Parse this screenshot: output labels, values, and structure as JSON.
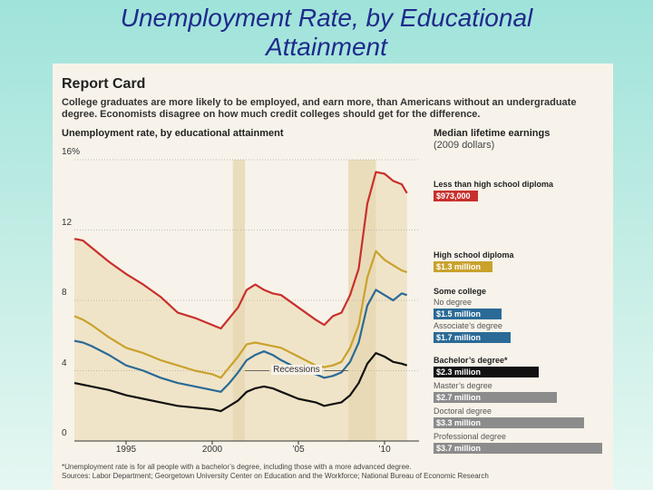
{
  "slide": {
    "title_line1": "Unemployment Rate, by Educational",
    "title_line2": "Attainment"
  },
  "card": {
    "title": "Report Card",
    "intro": "College graduates are more likely to be employed, and earn more, than Americans without an undergraduate degree. Economists disagree on how much credit colleges should get for the difference.",
    "footnote_line1": "*Unemployment rate is for all people with a bachelor’s degree, including those with a more advanced degree.",
    "footnote_line2": "Sources: Labor Department; Georgetown University Center on Education and the Workforce; National Bureau of Economic Research"
  },
  "colors": {
    "less_than_hs": "#c8302c",
    "high_school": "#c9a22c",
    "some_college": "#2a6a96",
    "bachelors": "#111111",
    "advanced": "#8c8c8c",
    "recession_band": "#e8d8b4",
    "fill": "#f0e4c8"
  },
  "chart_data": {
    "type": "line",
    "title": "Unemployment rate, by educational attainment",
    "ylabel": "",
    "ylim": [
      0,
      16
    ],
    "y_ticks": [
      "16%",
      "12",
      "8",
      "4",
      "0"
    ],
    "y_tick_values": [
      16,
      12,
      8,
      4,
      0
    ],
    "xlim": [
      1992.0,
      2012.0
    ],
    "x_ticks": [
      "1995",
      "2000",
      "’05",
      "’10"
    ],
    "x_tick_values": [
      1995,
      2000,
      2005,
      2010
    ],
    "recessions": [
      [
        2001.2,
        2001.9
      ],
      [
        2007.9,
        2009.5
      ]
    ],
    "recession_label": "Recessions",
    "series": [
      {
        "name": "Less than high school diploma",
        "x": [
          1992.0,
          1992.5,
          1993.0,
          1994.0,
          1995.0,
          1996.0,
          1997.0,
          1998.0,
          1999.0,
          2000.0,
          2000.5,
          2001.0,
          2001.5,
          2002.0,
          2002.5,
          2003.0,
          2003.5,
          2004.0,
          2005.0,
          2006.0,
          2006.5,
          2007.0,
          2007.5,
          2008.0,
          2008.5,
          2009.0,
          2009.5,
          2010.0,
          2010.5,
          2011.0,
          2011.3
        ],
        "values": [
          11.5,
          11.4,
          11.0,
          10.2,
          9.5,
          8.9,
          8.2,
          7.3,
          7.0,
          6.6,
          6.4,
          7.0,
          7.6,
          8.6,
          8.9,
          8.6,
          8.4,
          8.3,
          7.6,
          6.9,
          6.6,
          7.1,
          7.3,
          8.3,
          9.8,
          13.5,
          15.3,
          15.2,
          14.8,
          14.6,
          14.1
        ]
      },
      {
        "name": "High school diploma",
        "x": [
          1992.0,
          1992.5,
          1993.0,
          1994.0,
          1995.0,
          1996.0,
          1997.0,
          1998.0,
          1999.0,
          2000.0,
          2000.5,
          2001.0,
          2001.5,
          2002.0,
          2002.5,
          2003.0,
          2003.5,
          2004.0,
          2005.0,
          2006.0,
          2006.5,
          2007.0,
          2007.5,
          2008.0,
          2008.5,
          2009.0,
          2009.5,
          2010.0,
          2010.5,
          2011.0,
          2011.3
        ],
        "values": [
          7.1,
          6.9,
          6.6,
          5.9,
          5.3,
          5.0,
          4.6,
          4.3,
          4.0,
          3.8,
          3.6,
          4.2,
          4.8,
          5.5,
          5.6,
          5.5,
          5.4,
          5.3,
          4.8,
          4.3,
          4.2,
          4.3,
          4.5,
          5.3,
          6.6,
          9.3,
          10.8,
          10.3,
          10.0,
          9.7,
          9.6
        ]
      },
      {
        "name": "Some college",
        "x": [
          1992.0,
          1992.5,
          1993.0,
          1994.0,
          1995.0,
          1996.0,
          1997.0,
          1998.0,
          1999.0,
          2000.0,
          2000.5,
          2001.0,
          2001.5,
          2002.0,
          2002.5,
          2003.0,
          2003.5,
          2004.0,
          2005.0,
          2006.0,
          2006.5,
          2007.0,
          2007.5,
          2008.0,
          2008.5,
          2009.0,
          2009.5,
          2010.0,
          2010.5,
          2011.0,
          2011.3
        ],
        "values": [
          5.7,
          5.6,
          5.4,
          4.9,
          4.3,
          4.0,
          3.6,
          3.3,
          3.1,
          2.9,
          2.8,
          3.3,
          3.9,
          4.6,
          4.9,
          5.1,
          4.9,
          4.6,
          4.1,
          3.8,
          3.6,
          3.7,
          3.9,
          4.5,
          5.6,
          7.7,
          8.6,
          8.3,
          8.0,
          8.4,
          8.3
        ]
      },
      {
        "name": "Bachelor’s degree*",
        "x": [
          1992.0,
          1992.5,
          1993.0,
          1994.0,
          1995.0,
          1996.0,
          1997.0,
          1998.0,
          1999.0,
          2000.0,
          2000.5,
          2001.0,
          2001.5,
          2002.0,
          2002.5,
          2003.0,
          2003.5,
          2004.0,
          2005.0,
          2006.0,
          2006.5,
          2007.0,
          2007.5,
          2008.0,
          2008.5,
          2009.0,
          2009.5,
          2010.0,
          2010.5,
          2011.0,
          2011.3
        ],
        "values": [
          3.3,
          3.2,
          3.1,
          2.9,
          2.6,
          2.4,
          2.2,
          2.0,
          1.9,
          1.8,
          1.7,
          2.0,
          2.3,
          2.8,
          3.0,
          3.1,
          3.0,
          2.8,
          2.4,
          2.2,
          2.0,
          2.1,
          2.2,
          2.6,
          3.3,
          4.4,
          5.0,
          4.8,
          4.5,
          4.4,
          4.3
        ]
      }
    ]
  },
  "earnings": {
    "title": "Median lifetime earnings",
    "subtitle": "(2009 dollars)",
    "items": [
      {
        "label": "Less than high school diploma",
        "value": "$973,000",
        "amount": 973000,
        "bold": true,
        "color": "#c8302c"
      },
      {
        "label": "High school diploma",
        "value": "$1.3 million",
        "amount": 1300000,
        "bold": true,
        "color": "#c9a22c"
      },
      {
        "label": "Some college",
        "value": "",
        "amount": null,
        "bold": true,
        "color": ""
      },
      {
        "label": "No degree",
        "value": "$1.5 million",
        "amount": 1500000,
        "bold": false,
        "color": "#2a6a96"
      },
      {
        "label": "Associate’s degree",
        "value": "$1.7 million",
        "amount": 1700000,
        "bold": false,
        "color": "#2a6a96"
      },
      {
        "label": "Bachelor’s degree*",
        "value": "$2.3 million",
        "amount": 2300000,
        "bold": true,
        "color": "#111111"
      },
      {
        "label": "Master’s degree",
        "value": "$2.7 million",
        "amount": 2700000,
        "bold": false,
        "color": "#8c8c8c"
      },
      {
        "label": "Doctoral degree",
        "value": "$3.3 million",
        "amount": 3300000,
        "bold": false,
        "color": "#8c8c8c"
      },
      {
        "label": "Professional degree",
        "value": "$3.7 million",
        "amount": 3700000,
        "bold": false,
        "color": "#8c8c8c"
      }
    ]
  }
}
